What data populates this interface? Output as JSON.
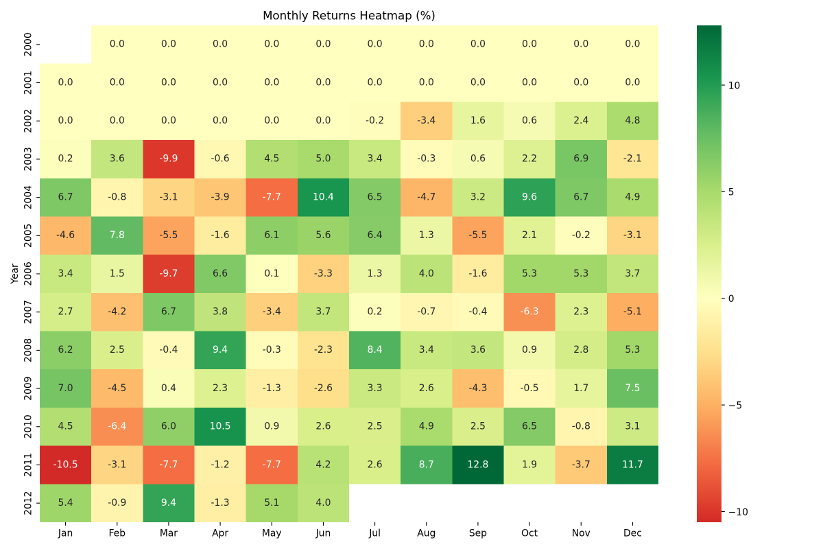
{
  "chart_data": {
    "type": "heatmap",
    "title": "Monthly Returns Heatmap (%)",
    "ylabel": "Year",
    "grid": false,
    "x_labels": [
      "Jan",
      "Feb",
      "Mar",
      "Apr",
      "May",
      "Jun",
      "Jul",
      "Aug",
      "Sep",
      "Oct",
      "Nov",
      "Dec"
    ],
    "y_labels": [
      "2000",
      "2001",
      "2002",
      "2003",
      "2004",
      "2005",
      "2006",
      "2007",
      "2008",
      "2009",
      "2010",
      "2011",
      "2012"
    ],
    "values": [
      [
        null,
        0.0,
        0.0,
        0.0,
        0.0,
        0.0,
        0.0,
        0.0,
        0.0,
        0.0,
        0.0,
        0.0
      ],
      [
        0.0,
        0.0,
        0.0,
        0.0,
        0.0,
        0.0,
        0.0,
        0.0,
        0.0,
        0.0,
        0.0,
        0.0
      ],
      [
        0.0,
        0.0,
        0.0,
        0.0,
        0.0,
        0.0,
        -0.2,
        -3.4,
        1.6,
        0.6,
        2.4,
        4.8
      ],
      [
        0.2,
        3.6,
        -9.9,
        -0.6,
        4.5,
        5.0,
        3.4,
        -0.3,
        0.6,
        2.2,
        6.9,
        -2.1
      ],
      [
        6.7,
        -0.8,
        -3.1,
        -3.9,
        -7.7,
        10.4,
        6.5,
        -4.7,
        3.2,
        9.6,
        6.7,
        4.9
      ],
      [
        -4.6,
        7.8,
        -5.5,
        -1.6,
        6.1,
        5.6,
        6.4,
        1.3,
        -5.5,
        2.1,
        -0.2,
        -3.1
      ],
      [
        3.4,
        1.5,
        -9.7,
        6.6,
        0.1,
        -3.3,
        1.3,
        4.0,
        -1.6,
        5.3,
        5.3,
        3.7
      ],
      [
        2.7,
        -4.2,
        6.7,
        3.8,
        -3.4,
        3.7,
        0.2,
        -0.7,
        -0.4,
        -6.3,
        2.3,
        -5.1
      ],
      [
        6.2,
        2.5,
        -0.4,
        9.4,
        -0.3,
        -2.3,
        8.4,
        3.4,
        3.6,
        0.9,
        2.8,
        5.3
      ],
      [
        7.0,
        -4.5,
        0.4,
        2.3,
        -1.3,
        -2.6,
        3.3,
        2.6,
        -4.3,
        -0.5,
        1.7,
        7.5
      ],
      [
        4.5,
        -6.4,
        6.0,
        10.5,
        0.9,
        2.6,
        2.5,
        4.9,
        2.5,
        6.5,
        -0.8,
        3.1
      ],
      [
        -10.5,
        -3.1,
        -7.7,
        -1.2,
        -7.7,
        4.2,
        2.6,
        8.7,
        12.8,
        1.9,
        -3.7,
        11.7
      ],
      [
        5.4,
        -0.9,
        9.4,
        -1.3,
        5.1,
        4.0,
        null,
        null,
        null,
        null,
        null,
        null
      ]
    ],
    "color_scale": {
      "vmin": -10.5,
      "vmax": 12.8,
      "center": 0,
      "colors": [
        "#a50026",
        "#d73027",
        "#f46d43",
        "#fdae61",
        "#fee08b",
        "#ffffbf",
        "#d9ef8b",
        "#a6d96a",
        "#66bd63",
        "#1a9850",
        "#006837"
      ]
    },
    "colorbar": {
      "placement": "right",
      "ticks": [
        {
          "value": 10,
          "label": "10"
        },
        {
          "value": 5,
          "label": "5"
        },
        {
          "value": 0,
          "label": "0"
        },
        {
          "value": -5,
          "label": "−5"
        },
        {
          "value": -10,
          "label": "−10"
        }
      ]
    },
    "annotation_text_colors": {
      "light": "#ffffff",
      "dark": "#262626"
    }
  }
}
